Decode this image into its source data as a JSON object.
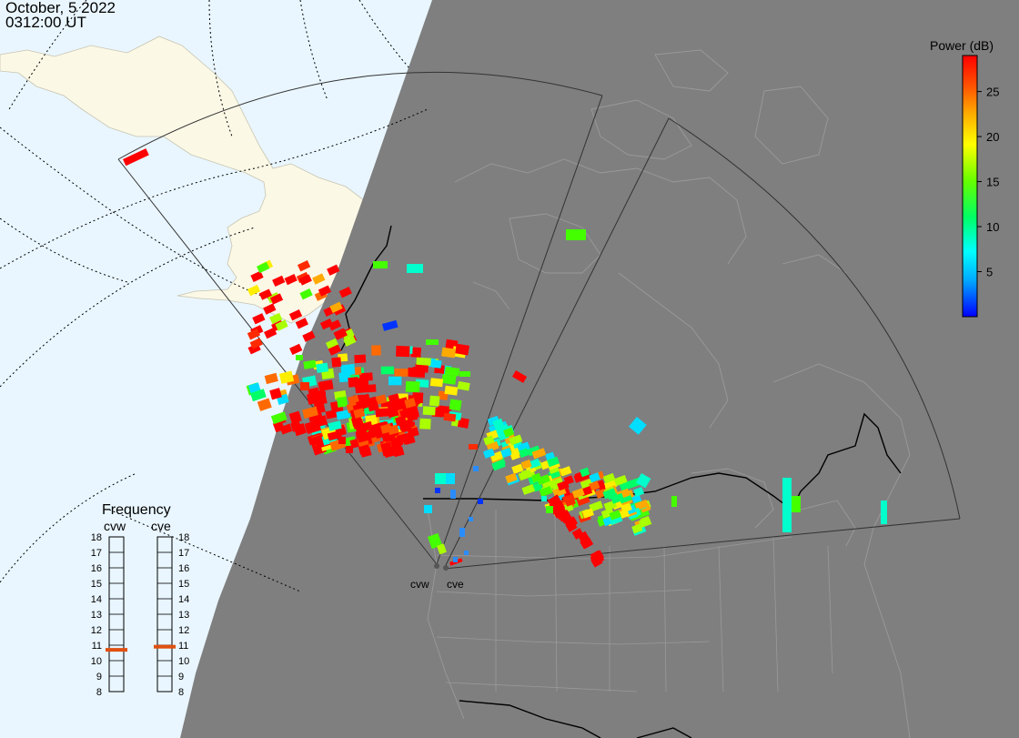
{
  "header": {
    "date": "October, 5 2022",
    "time": "0312:00 UT"
  },
  "colorbar": {
    "title": "Power (dB)",
    "ticks": [
      "25",
      "20",
      "15",
      "10",
      "5"
    ],
    "tick_values": [
      25,
      20,
      15,
      10,
      5
    ],
    "range": [
      0,
      29
    ],
    "colors": [
      "#0000ff",
      "#00aaff",
      "#00ffff",
      "#00ff66",
      "#66ff00",
      "#ffff00",
      "#ffaa00",
      "#ff5500",
      "#ff0000"
    ]
  },
  "frequency": {
    "title": "Frequency",
    "radars": [
      {
        "name": "cvw",
        "value": 10.7
      },
      {
        "name": "cve",
        "value": 10.9
      }
    ],
    "scale": [
      "18",
      "17",
      "16",
      "15",
      "14",
      "13",
      "12",
      "11",
      "10",
      "9",
      "8"
    ],
    "scale_range": [
      8,
      18
    ],
    "marker_color": "#e05010"
  },
  "sites": [
    {
      "name": "cvw"
    },
    {
      "name": "cve"
    }
  ],
  "colors": {
    "ocean": "#e9f6ff",
    "land_day": "#fbf8e6",
    "night": "#7f7f7f",
    "border": "#000000",
    "coast_night": "#9a9a9a",
    "fov": "#333333"
  }
}
